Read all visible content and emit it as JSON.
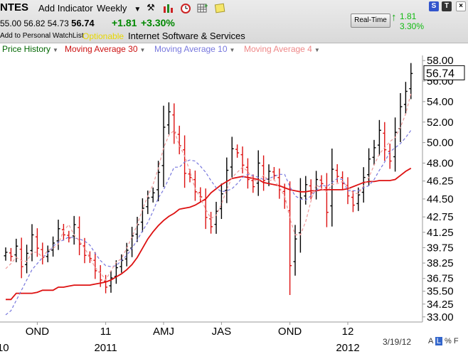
{
  "header": {
    "ticker": "NTES",
    "add_indicator": "Add Indicator",
    "period": "Weekly",
    "quote": {
      "open": "55.00",
      "high": "56.82",
      "low": "54.73",
      "close": "56.74",
      "change": "+1.81",
      "change_pct": "+3.30%"
    },
    "watchlist_link": "Add to Personal WatchList",
    "optionable": "Optionable",
    "industry": "Internet Software & Services",
    "realtime_button": "Real-Time",
    "realtime_change": "1.81",
    "realtime_pct": "3.30%",
    "corner_buttons": [
      "S",
      "T"
    ]
  },
  "legend": {
    "price_history": "Price History",
    "ma30": "Moving Average 30",
    "ma10": "Moving Average 10",
    "ma4": "Moving Average 4"
  },
  "colors": {
    "up_bar": "#000000",
    "down_bar": "#dd1111",
    "ma30": "#dd1111",
    "ma10": "#7777dd",
    "ma4": "#ee9999",
    "price_history_text": "#006600",
    "ma10_text": "#7777dd",
    "ma4_text": "#ee8888"
  },
  "footer": {
    "date": "3/19/12",
    "scale_buttons": [
      "A",
      "L",
      "%",
      "F"
    ]
  },
  "chart_data": {
    "type": "ohlc",
    "period": "weekly",
    "ylim": [
      32.5,
      58.5
    ],
    "y_ticks": [
      "58.00",
      "56.00",
      "54.00",
      "52.00",
      "50.00",
      "48.00",
      "46.25",
      "44.50",
      "42.75",
      "41.25",
      "39.75",
      "38.25",
      "36.75",
      "35.50",
      "34.25",
      "33.00"
    ],
    "last_price_label": "56.74",
    "x_tick_labels": [
      {
        "week": 6,
        "label": "OND"
      },
      {
        "week": 19,
        "label": "11"
      },
      {
        "week": 30,
        "label": "AMJ"
      },
      {
        "week": 41,
        "label": "JAS"
      },
      {
        "week": 54,
        "label": "OND"
      },
      {
        "week": 65,
        "label": "12"
      }
    ],
    "year_labels": [
      {
        "week": -0.5,
        "label": "10"
      },
      {
        "week": 19,
        "label": "2011"
      },
      {
        "week": 65,
        "label": "2012"
      }
    ],
    "close": [
      39.3,
      38.9,
      39.9,
      37.9,
      39.2,
      41.0,
      39.7,
      38.8,
      39.4,
      40.2,
      41.6,
      41.0,
      40.7,
      42.0,
      40.1,
      39.0,
      38.7,
      37.5,
      36.6,
      35.9,
      36.8,
      37.8,
      38.5,
      39.5,
      40.9,
      42.0,
      43.6,
      44.6,
      45.1,
      47.1,
      51.5,
      53.0,
      51.0,
      49.7,
      47.0,
      46.6,
      45.2,
      44.7,
      42.7,
      41.8,
      43.3,
      45.0,
      47.3,
      49.4,
      49.0,
      47.8,
      46.4,
      45.7,
      48.0,
      46.3,
      47.2,
      46.8,
      45.4,
      44.3,
      38.0,
      40.6,
      44.6,
      45.9,
      45.1,
      46.4,
      46.0,
      43.2,
      47.4,
      46.7,
      46.0,
      44.8,
      43.9,
      44.9,
      46.6,
      48.4,
      49.5,
      51.2,
      49.3,
      48.2,
      51.0,
      53.5,
      55.0,
      56.74
    ],
    "series": [
      {
        "name": "Moving Average 30",
        "values": [
          34.7,
          34.7,
          35.3,
          35.3,
          35.3,
          35.3,
          35.4,
          35.6,
          35.6,
          35.6,
          35.9,
          35.9,
          36.0,
          36.1,
          36.1,
          36.1,
          36.1,
          36.2,
          36.3,
          36.4,
          36.6,
          36.9,
          37.2,
          37.6,
          38.1,
          38.8,
          39.7,
          40.6,
          41.3,
          41.9,
          42.4,
          42.8,
          43.1,
          43.5,
          43.6,
          43.7,
          43.9,
          44.2,
          44.5,
          45.1,
          45.5,
          45.9,
          46.2,
          46.5,
          46.6,
          46.7,
          46.6,
          46.5,
          46.4,
          46.1,
          46.0,
          45.9,
          45.8,
          45.6,
          45.4,
          45.3,
          45.2,
          45.2,
          45.3,
          45.3,
          45.4,
          45.4,
          45.4,
          45.4,
          45.4,
          45.5,
          45.7,
          45.9,
          46.1,
          46.2,
          46.2,
          46.3,
          46.3,
          46.3,
          46.4,
          46.8,
          47.2,
          47.5
        ]
      },
      {
        "name": "Moving Average 10",
        "values": [
          33.2,
          33.6,
          34.6,
          35.6,
          36.6,
          37.6,
          38.2,
          38.8,
          39.2,
          39.9,
          40.3,
          40.5,
          40.8,
          40.7,
          40.6,
          40.4,
          40.0,
          39.2,
          38.5,
          38.0,
          37.9,
          38.0,
          38.5,
          39.0,
          39.7,
          40.5,
          41.4,
          42.2,
          43.3,
          44.6,
          45.4,
          46.5,
          47.6,
          47.6,
          48.1,
          48.3,
          48.2,
          47.7,
          47.1,
          46.3,
          45.6,
          45.2,
          45.3,
          45.5,
          46.0,
          46.6,
          46.9,
          46.8,
          46.6,
          46.4,
          46.5,
          46.7,
          46.9,
          46.9,
          45.7,
          44.8,
          44.5,
          44.4,
          44.8,
          45.3,
          45.9,
          45.7,
          46.1,
          46.5,
          46.4,
          45.3,
          45.3,
          45.3,
          45.6,
          45.8,
          46.4,
          47.3,
          48.1,
          49.1,
          49.5,
          49.9,
          50.5,
          51.2
        ]
      },
      {
        "name": "Moving Average 4",
        "values": [
          37.7,
          38.2,
          38.8,
          38.5,
          38.4,
          39.3,
          39.3,
          38.8,
          39.5,
          39.7,
          40.1,
          41.4,
          42.0,
          41.0,
          40.4,
          39.7,
          38.8,
          37.8,
          37.3,
          36.6,
          37.5,
          38.3,
          38.7,
          39.7,
          40.8,
          42.0,
          43.5,
          44.8,
          45.9,
          47.5,
          49.5,
          50.7,
          51.2,
          49.7,
          48.7,
          47.2,
          45.5,
          44.6,
          43.5,
          42.6,
          42.9,
          44.0,
          45.4,
          46.6,
          47.1,
          47.6,
          47.2,
          46.4,
          46.2,
          46.8,
          46.3,
          46.4,
          45.6,
          44.8,
          42.6,
          41.0,
          41.0,
          42.3,
          44.3,
          45.9,
          45.5,
          45.2,
          45.9,
          46.0,
          46.2,
          45.7,
          45.1,
          45.0,
          45.8,
          46.6,
          47.8,
          48.9,
          49.5,
          50.1,
          50.5,
          51.5,
          52.8,
          54.8
        ]
      }
    ]
  }
}
